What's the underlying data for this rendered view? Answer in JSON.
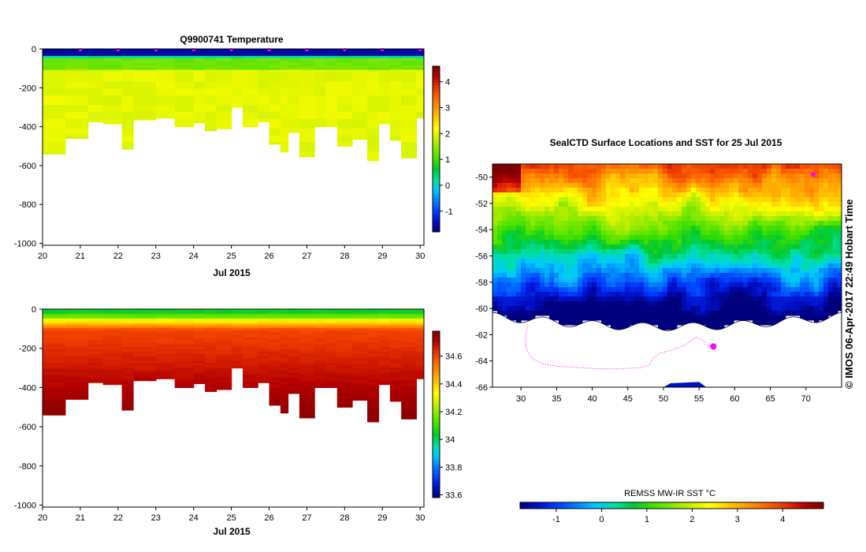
{
  "colors": {
    "palette": [
      "#00007f",
      "#0010c8",
      "#0040ff",
      "#0080ff",
      "#00c8ff",
      "#00e0a0",
      "#00c832",
      "#40e000",
      "#7ee800",
      "#c8f000",
      "#ffff00",
      "#ffc800",
      "#ff9600",
      "#ff6400",
      "#e83200",
      "#b40000",
      "#800000"
    ],
    "land": "#ffffff",
    "track": "#ff00ff"
  },
  "charts": {
    "temp": {
      "type": "heatmap",
      "title": "Q9900741  Temperature",
      "xlabel": "Jul 2015",
      "xlim": [
        20,
        30.1
      ],
      "ylim": [
        -1010,
        0
      ],
      "xticks": [
        "20",
        "21",
        "22",
        "23",
        "24",
        "25",
        "26",
        "27",
        "28",
        "29",
        "30"
      ],
      "yticks": [
        "0",
        "-200",
        "-400",
        "-600",
        "-800",
        "-1000"
      ],
      "colorbar_ticks": [
        "4",
        "3",
        "2",
        "1",
        "0",
        "-1"
      ],
      "colorbar_range": [
        -1.8,
        4.6
      ],
      "profile_times": [
        20.0,
        20.6,
        21.2,
        21.6,
        22.1,
        22.4,
        23.0,
        23.5,
        24.0,
        24.3,
        24.6,
        25.0,
        25.3,
        25.7,
        26.0,
        26.3,
        26.5,
        26.8,
        27.2,
        27.5,
        27.8,
        28.2,
        28.6,
        28.9,
        29.2,
        29.5,
        29.9,
        30.1
      ],
      "profile_depths": [
        540,
        460,
        375,
        385,
        515,
        365,
        355,
        400,
        380,
        420,
        410,
        300,
        400,
        375,
        490,
        530,
        430,
        555,
        400,
        400,
        500,
        465,
        575,
        385,
        470,
        560,
        355,
        540
      ],
      "surface_markers": [
        21.0,
        22.0,
        23.0,
        24.0,
        25.0,
        26.0,
        27.0,
        28.0,
        29.0,
        30.0
      ]
    },
    "salinity": {
      "type": "heatmap",
      "xlabel": "Jul 2015",
      "xlim": [
        20,
        30.1
      ],
      "ylim": [
        -1010,
        0
      ],
      "xticks": [
        "20",
        "21",
        "22",
        "23",
        "24",
        "25",
        "26",
        "27",
        "28",
        "29",
        "30"
      ],
      "yticks": [
        "0",
        "-200",
        "-400",
        "-600",
        "-800",
        "-1000"
      ],
      "colorbar_ticks": [
        "34.6",
        "34.4",
        "34.2",
        "34",
        "33.8",
        "33.6"
      ],
      "colorbar_range": [
        33.58,
        34.78
      ]
    },
    "map": {
      "type": "heatmap",
      "title": "SealCTD Surface Locations and SST for 25 Jul 2015",
      "xlim": [
        26,
        75
      ],
      "ylim": [
        -66,
        -49
      ],
      "xticks": [
        "30",
        "35",
        "40",
        "45",
        "50",
        "55",
        "60",
        "65",
        "70"
      ],
      "yticks": [
        "-50",
        "-52",
        "-54",
        "-56",
        "-58",
        "-60",
        "-62",
        "-64",
        "-66"
      ],
      "colorbar_label": "REMSS MW-IR SST °C",
      "colorbar_ticks": [
        "-1",
        "0",
        "1",
        "2",
        "3",
        "4"
      ],
      "colorbar_range": [
        -1.8,
        4.9
      ],
      "credit": "© IMOS 06-Apr-2017 22:49 Hobart Time"
    }
  }
}
